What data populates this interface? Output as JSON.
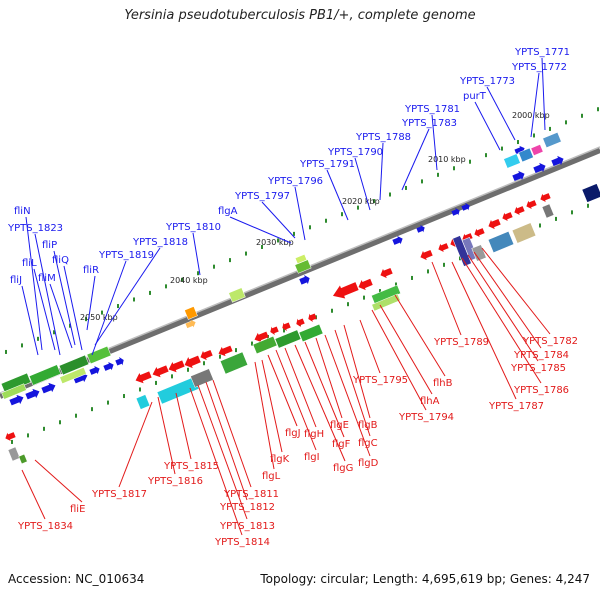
{
  "title": "Yersinia pseudotuberculosis PB1/+, complete genome",
  "footer": {
    "accession": "Accession: NC_010634",
    "summary": "Topology: circular; Length: 4,695,619 bp; Genes: 4,247"
  },
  "kbp_ticks": [
    "2000 kbp",
    "2010 kbp",
    "2020 kbp",
    "2030 kbp",
    "2040 kbp",
    "2050 kbp"
  ],
  "blue_labels": [
    "YPTS_1771",
    "YPTS_1772",
    "YPTS_1773",
    "purT",
    "YPTS_1781",
    "YPTS_1783",
    "YPTS_1788",
    "YPTS_1790",
    "YPTS_1791",
    "YPTS_1796",
    "YPTS_1797",
    "flgA",
    "YPTS_1810",
    "YPTS_1818",
    "YPTS_1819",
    "fliR",
    "fliN",
    "YPTS_1823",
    "fliP",
    "fliQ",
    "fliL",
    "fliM",
    "fliJ"
  ],
  "red_labels": [
    "YPTS_1782",
    "YPTS_1784",
    "YPTS_1785",
    "YPTS_1786",
    "YPTS_1787",
    "YPTS_1789",
    "flhB",
    "flhA",
    "YPTS_1794",
    "YPTS_1795",
    "flgB",
    "flgC",
    "flgD",
    "flgE",
    "flgF",
    "flgG",
    "flgH",
    "flgI",
    "flgJ",
    "flgK",
    "flgL",
    "YPTS_1811",
    "YPTS_1812",
    "YPTS_1813",
    "YPTS_1814",
    "YPTS_1815",
    "YPTS_1816",
    "YPTS_1817",
    "fliE",
    "YPTS_1834"
  ]
}
